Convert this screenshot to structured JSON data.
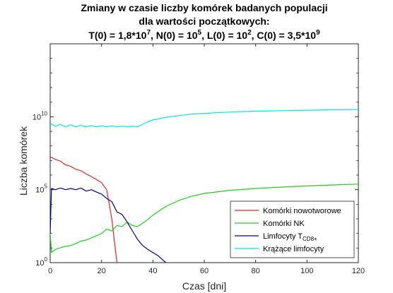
{
  "chart_data": {
    "type": "line",
    "title_lines": [
      "Zmiany w czasie liczby komórek badanych populacji",
      "dla wartości początkowych:",
      "T(0) = 1,8*10^7, N(0) = 10^5, L(0) = 10^2, C(0) = 3,5*10^9"
    ],
    "xlabel": "Czas [dni]",
    "ylabel": "Liczba komórek",
    "xlim": [
      0,
      120
    ],
    "ylim": [
      1,
      1000000000000000.0
    ],
    "yscale": "log",
    "x_ticks": [
      0,
      20,
      40,
      60,
      80,
      100,
      120
    ],
    "y_ticks": [
      1,
      100000.0,
      10000000000.0
    ],
    "y_tick_labels": [
      {
        "base": "10",
        "exp": "0"
      },
      {
        "base": "10",
        "exp": "5"
      },
      {
        "base": "10",
        "exp": "10"
      }
    ],
    "grid": false,
    "legend_position": "bottom-right",
    "series": [
      {
        "name": "Komórki nowotworowe",
        "color": "#d62728",
        "x": [
          0,
          2,
          4,
          6,
          8,
          10,
          12,
          14,
          16,
          18,
          20,
          22,
          24,
          25,
          26
        ],
        "y": [
          18000000.0,
          12000000.0,
          9000000.0,
          5000000.0,
          4000000.0,
          2500000.0,
          2000000.0,
          1200000.0,
          800000.0,
          500000.0,
          300000.0,
          100000.0,
          1000.0,
          30,
          1
        ]
      },
      {
        "name": "Komórki NK",
        "color": "#22cc22",
        "x": [
          0,
          0.5,
          2,
          5,
          8,
          10,
          12,
          14,
          16,
          18,
          20,
          22,
          24,
          26,
          28,
          30,
          32,
          34,
          36,
          38,
          40,
          45,
          50,
          55,
          60,
          70,
          80,
          90,
          100,
          110,
          120
        ],
        "y": [
          100,
          5,
          8,
          12,
          15,
          20,
          30,
          35,
          50,
          70,
          100,
          200,
          150,
          350,
          300,
          600,
          350,
          300,
          500,
          900,
          1800,
          7000,
          18000,
          35000,
          55000,
          90000,
          120000,
          150000,
          180000,
          210000,
          240000
        ],
        "y_note": "start"
      },
      {
        "name": "Limfocyty T",
        "name_sub": "CD8+",
        "color": "#00008b",
        "x": [
          0,
          0.5,
          2,
          4,
          6,
          8,
          10,
          12,
          14,
          16,
          18,
          20,
          22,
          24,
          26,
          28,
          30,
          32,
          34,
          36,
          38,
          40,
          42,
          45
        ],
        "y": [
          100,
          120000.0,
          100000.0,
          130000.0,
          100000.0,
          120000.0,
          100000.0,
          130000.0,
          80000.0,
          100000.0,
          70000.0,
          50000.0,
          25000.0,
          15000.0,
          3000,
          2000,
          600,
          150,
          40,
          15,
          8,
          5,
          3,
          1
        ]
      },
      {
        "name": "Krążące limfocyty",
        "color": "#00e5e5",
        "x": [
          0,
          2,
          4,
          6,
          8,
          10,
          12,
          14,
          16,
          18,
          20,
          22,
          24,
          26,
          28,
          30,
          32,
          34,
          36,
          38,
          40,
          45,
          50,
          55,
          60,
          70,
          80,
          90,
          100,
          110,
          120
        ],
        "y": [
          3500000000.0,
          2200000000.0,
          3000000000.0,
          2000000000.0,
          2800000000.0,
          2000000000.0,
          2600000000.0,
          2000000000.0,
          2500000000.0,
          2000000000.0,
          2400000000.0,
          2000000000.0,
          2400000000.0,
          2000000000.0,
          2300000000.0,
          2000000000.0,
          2200000000.0,
          2000000000.0,
          3000000000.0,
          4500000000.0,
          6000000000.0,
          9000000000.0,
          12000000000.0,
          15000000000.0,
          17000000000.0,
          21000000000.0,
          24000000000.0,
          26000000000.0,
          28000000000.0,
          30000000000.0,
          31000000000.0
        ]
      }
    ]
  }
}
